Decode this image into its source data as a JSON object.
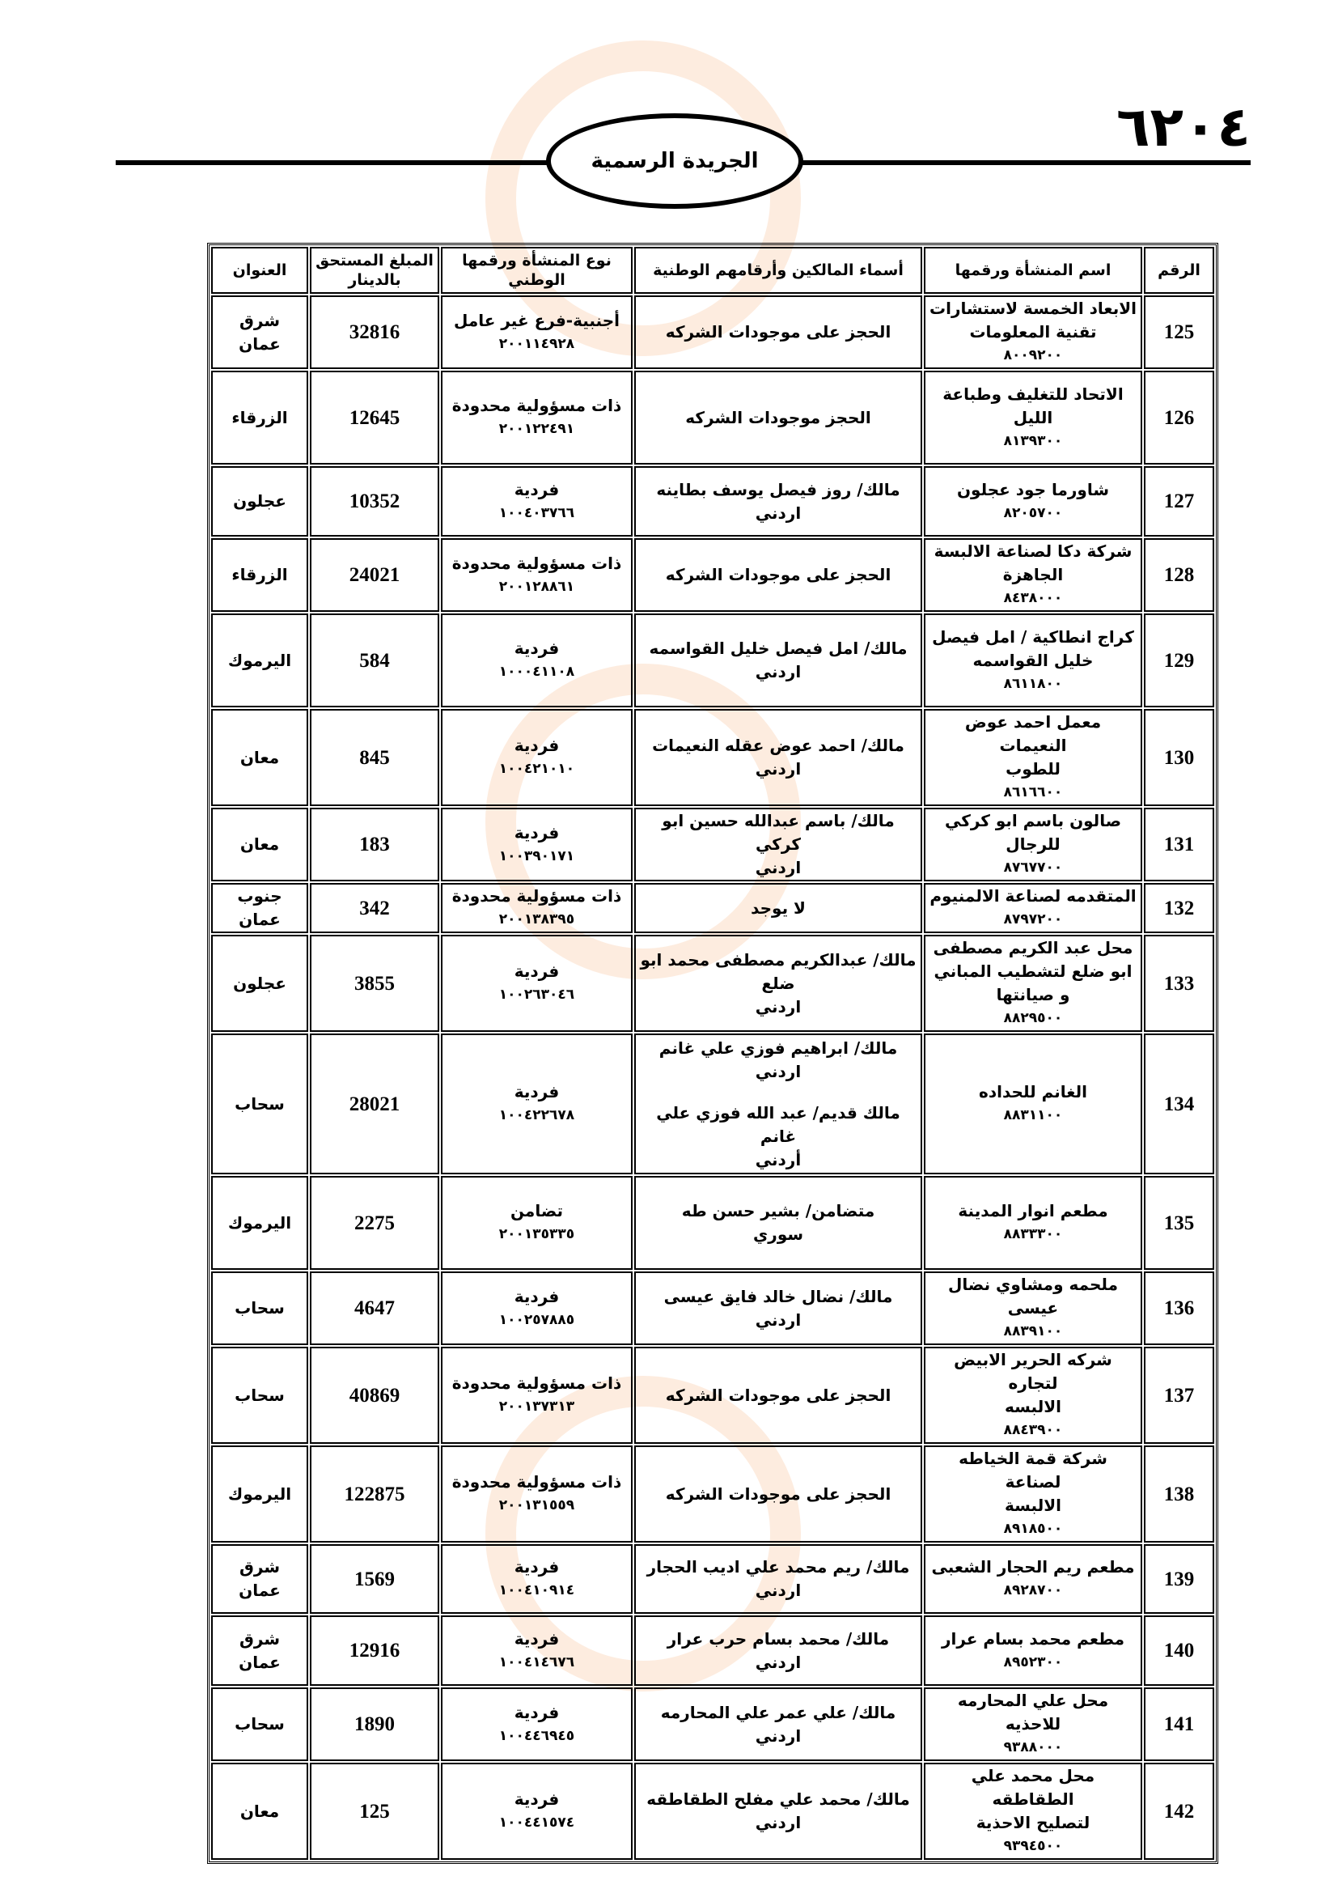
{
  "header": {
    "page_number": "٦٢٠٤",
    "gazette_title": "الجريدة الرسمية"
  },
  "table": {
    "columns": {
      "number": "الرقم",
      "establishment": "اسم المنشأة ورقمها",
      "owners": "أسماء المالكين وأرقامهم الوطنية",
      "type": "نوع المنشأة ورقمها الوطني",
      "amount": "المبلغ المستحق بالدينار",
      "address": "العنوان"
    },
    "rows": [
      {
        "number": "125",
        "name": [
          "الابعاد الخمسة لاستشارات",
          "تقنية المعلومات"
        ],
        "name_id": "٨٠٠٩٢٠٠",
        "owners": [
          [
            "الحجز على موجودات الشركه"
          ]
        ],
        "type": "أجنبية-فرع غير عامل",
        "type_id": "٢٠٠١١٤٩٢٨",
        "amount": "32816",
        "address": [
          "شرق",
          "عمان"
        ]
      },
      {
        "number": "126",
        "name": [
          "الاتحاد للتغليف وطباعة الليل"
        ],
        "name_id": "٨١٣٩٣٠٠",
        "owners": [
          [
            "الحجز موجودات الشركه"
          ]
        ],
        "type": "ذات مسؤولية محدودة",
        "type_id": "٢٠٠١٢٢٤٩١",
        "amount": "12645",
        "address": [
          "الزرقاء"
        ]
      },
      {
        "number": "127",
        "name": [
          "شاورما جود عجلون"
        ],
        "name_id": "٨٢٠٥٧٠٠",
        "owners": [
          [
            "مالك/ روز فيصل يوسف بطاينه",
            "اردني"
          ]
        ],
        "type": "فردية",
        "type_id": "١٠٠٤٠٣٧٦٦",
        "amount": "10352",
        "address": [
          "عجلون"
        ]
      },
      {
        "number": "128",
        "name": [
          "شركة دكا لصناعة الالبسة",
          "الجاهزة"
        ],
        "name_id": "٨٤٣٨٠٠٠",
        "owners": [
          [
            "الحجز على موجودات الشركه"
          ]
        ],
        "type": "ذات مسؤولية محدودة",
        "type_id": "٢٠٠١٢٨٨٦١",
        "amount": "24021",
        "address": [
          "الزرقاء"
        ]
      },
      {
        "number": "129",
        "name": [
          "كراج انطاكية / امل فيصل",
          "خليل القواسمه"
        ],
        "name_id": "٨٦١١٨٠٠",
        "owners": [
          [
            "مالك/ امل فيصل خليل القواسمه",
            "اردني"
          ]
        ],
        "type": "فردية",
        "type_id": "١٠٠٠٤١١٠٨",
        "amount": "584",
        "address": [
          "اليرموك"
        ]
      },
      {
        "number": "130",
        "name": [
          "معمل احمد عوض  النعيمات",
          "للطوب"
        ],
        "name_id": "٨٦١٦٦٠٠",
        "owners": [
          [
            "مالك/ احمد عوض عقله النعيمات",
            "اردني"
          ]
        ],
        "type": "فردية",
        "type_id": "١٠٠٤٢١٠١٠",
        "amount": "845",
        "address": [
          "معان"
        ]
      },
      {
        "number": "131",
        "name": [
          "صالون باسم ابو كركي للرجال"
        ],
        "name_id": "٨٧٦٧٧٠٠",
        "owners": [
          [
            "مالك/ باسم عبدالله حسين ابو كركي",
            "اردني"
          ]
        ],
        "type": "فردية",
        "type_id": "١٠٠٣٩٠١٧١",
        "amount": "183",
        "address": [
          "معان"
        ]
      },
      {
        "number": "132",
        "name": [
          "المتقدمه لصناعة الالمنيوم"
        ],
        "name_id": "٨٧٩٧٢٠٠",
        "owners": [
          [
            "لا يوجد"
          ]
        ],
        "type": "ذات مسؤولية محدودة",
        "type_id": "٢٠٠١٣٨٣٩٥",
        "amount": "342",
        "address": [
          "جنوب",
          "عمان"
        ]
      },
      {
        "number": "133",
        "name": [
          "محل عبد الكريم مصطفى",
          "ابو ضلع لتشطيب المباني",
          "و صيانتها"
        ],
        "name_id": "٨٨٢٩٥٠٠",
        "owners": [
          [
            "مالك/ عبدالكريم مصطفى محمد ابو ضلع",
            "اردني"
          ]
        ],
        "type": "فردية",
        "type_id": "١٠٠٢٦٣٠٤٦",
        "amount": "3855",
        "address": [
          "عجلون"
        ]
      },
      {
        "number": "134",
        "name": [
          "الغانم للحداده"
        ],
        "name_id": "٨٨٣١١٠٠",
        "owners": [
          [
            "مالك/ ابراهيم فوزي علي غانم",
            "اردني"
          ],
          [
            "مالك قديم/ عبد الله فوزي علي غانم",
            "أردني"
          ]
        ],
        "type": "فردية",
        "type_id": "١٠٠٤٢٢٦٧٨",
        "amount": "28021",
        "address": [
          "سحاب"
        ]
      },
      {
        "number": "135",
        "name": [
          "مطعم انوار المدينة"
        ],
        "name_id": "٨٨٣٣٣٠٠",
        "owners": [
          [
            "متضامن/ بشير حسن طه",
            "سوري"
          ]
        ],
        "type": "تضامن",
        "type_id": "٢٠٠١٣٥٣٣٥",
        "amount": "2275",
        "address": [
          "اليرموك"
        ]
      },
      {
        "number": "136",
        "name": [
          "ملحمه ومشاوي نضال عيسى"
        ],
        "name_id": "٨٨٣٩١٠٠",
        "owners": [
          [
            "مالك/ نضال خالد فايق عيسى",
            "اردني"
          ]
        ],
        "type": "فردية",
        "type_id": "١٠٠٢٥٧٨٨٥",
        "amount": "4647",
        "address": [
          "سحاب"
        ]
      },
      {
        "number": "137",
        "name": [
          "شركه الحرير الابيض لتجاره",
          "الالبسه"
        ],
        "name_id": "٨٨٤٣٩٠٠",
        "owners": [
          [
            "الحجز على موجودات الشركه"
          ]
        ],
        "type": "ذات مسؤولية محدودة",
        "type_id": "٢٠٠١٣٧٣١٣",
        "amount": "40869",
        "address": [
          "سحاب"
        ]
      },
      {
        "number": "138",
        "name": [
          "شركة قمة الخياطه لصناعة",
          "الالبسة"
        ],
        "name_id": "٨٩١٨٥٠٠",
        "owners": [
          [
            "الحجز على موجودات الشركه"
          ]
        ],
        "type": "ذات مسؤولية محدودة",
        "type_id": "٢٠٠١٣١٥٥٩",
        "amount": "122875",
        "address": [
          "اليرموك"
        ]
      },
      {
        "number": "139",
        "name": [
          "مطعم ريم الحجار الشعبى"
        ],
        "name_id": "٨٩٢٨٧٠٠",
        "owners": [
          [
            "مالك/ ريم محمد علي اديب الحجار",
            "اردني"
          ]
        ],
        "type": "فردية",
        "type_id": "١٠٠٤١٠٩١٤",
        "amount": "1569",
        "address": [
          "شرق",
          "عمان"
        ]
      },
      {
        "number": "140",
        "name": [
          "مطعم محمد بسام عرار"
        ],
        "name_id": "٨٩٥٢٣٠٠",
        "owners": [
          [
            "مالك/ محمد بسام حرب عرار",
            "اردني"
          ]
        ],
        "type": "فردية",
        "type_id": "١٠٠٤١٤٦٧٦",
        "amount": "12916",
        "address": [
          "شرق",
          "عمان"
        ]
      },
      {
        "number": "141",
        "name": [
          "محل علي المحارمه للاحذيه"
        ],
        "name_id": "٩٣٨٨٠٠٠",
        "owners": [
          [
            "مالك/ علي عمر علي المحارمه",
            "اردني"
          ]
        ],
        "type": "فردية",
        "type_id": "١٠٠٤٤٦٩٤٥",
        "amount": "1890",
        "address": [
          "سحاب"
        ]
      },
      {
        "number": "142",
        "name": [
          "محل محمد علي الطقاطقه",
          "لتصليح الاحذية"
        ],
        "name_id": "٩٣٩٤٥٠٠",
        "owners": [
          [
            "مالك/ محمد علي مفلح الطقاطقه",
            "اردني"
          ]
        ],
        "type": "فردية",
        "type_id": "١٠٠٤٤١٥٧٤",
        "amount": "125",
        "address": [
          "معان"
        ]
      }
    ]
  }
}
